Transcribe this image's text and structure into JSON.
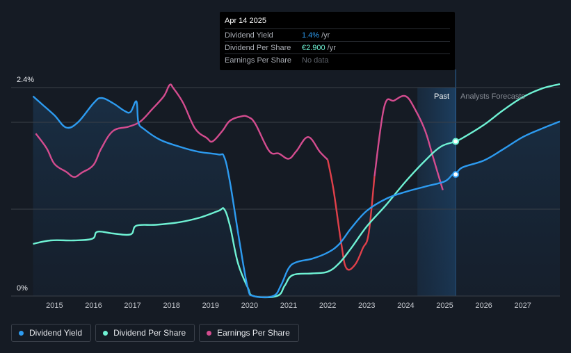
{
  "tooltip": {
    "date": "Apr 14 2025",
    "rows": [
      {
        "label": "Dividend Yield",
        "value": "1.4%",
        "unit": "/yr"
      },
      {
        "label": "Dividend Per Share",
        "value": "€2.900",
        "unit": "/yr"
      },
      {
        "label": "Earnings Per Share",
        "value": "No data",
        "unit": ""
      }
    ]
  },
  "legend": [
    {
      "label": "Dividend Yield",
      "color": "#2d9bf0"
    },
    {
      "label": "Dividend Per Share",
      "color": "#6ff2d4"
    },
    {
      "label": "Earnings Per Share",
      "color": "#d44c8f"
    }
  ],
  "chart_data": {
    "type": "line",
    "xlim": [
      2014.45,
      2027.95
    ],
    "ylim": [
      0,
      2.4
    ],
    "y_tick_labels": [
      {
        "value": 2.4,
        "label": "2.4%"
      },
      {
        "value": 0,
        "label": "0%"
      }
    ],
    "x_ticks": [
      2015,
      2016,
      2017,
      2018,
      2019,
      2020,
      2021,
      2022,
      2023,
      2024,
      2025,
      2026,
      2027
    ],
    "past_label": "Past",
    "forecast_label": "Analysts Forecasts",
    "forecast_band": [
      2024.3,
      2025.28
    ],
    "grid": true,
    "colors": {
      "yield": "#2d9bf0",
      "dps": "#6ff2d4",
      "eps_pos": "#d44c8f",
      "eps_neg": "#e0404a"
    },
    "series": [
      {
        "name": "Dividend Yield",
        "key": "yield",
        "points": [
          [
            2014.45,
            2.3
          ],
          [
            2014.7,
            2.2
          ],
          [
            2015.0,
            2.08
          ],
          [
            2015.3,
            1.94
          ],
          [
            2015.6,
            2.0
          ],
          [
            2016.0,
            2.22
          ],
          [
            2016.2,
            2.28
          ],
          [
            2016.5,
            2.22
          ],
          [
            2016.8,
            2.13
          ],
          [
            2016.95,
            2.12
          ],
          [
            2017.1,
            2.24
          ],
          [
            2017.15,
            2.0
          ],
          [
            2017.3,
            1.92
          ],
          [
            2017.7,
            1.8
          ],
          [
            2018.2,
            1.72
          ],
          [
            2018.7,
            1.66
          ],
          [
            2019.2,
            1.63
          ],
          [
            2019.35,
            1.6
          ],
          [
            2019.5,
            1.3
          ],
          [
            2019.75,
            0.6
          ],
          [
            2019.95,
            0.1
          ],
          [
            2020.1,
            0.0
          ],
          [
            2020.6,
            0.0
          ],
          [
            2020.8,
            0.12
          ],
          [
            2021.0,
            0.32
          ],
          [
            2021.2,
            0.39
          ],
          [
            2021.6,
            0.43
          ],
          [
            2022.0,
            0.5
          ],
          [
            2022.3,
            0.6
          ],
          [
            2022.6,
            0.78
          ],
          [
            2023.0,
            0.98
          ],
          [
            2023.5,
            1.12
          ],
          [
            2024.0,
            1.2
          ],
          [
            2024.5,
            1.26
          ],
          [
            2025.0,
            1.32
          ],
          [
            2025.2,
            1.4
          ],
          [
            2025.28,
            1.4
          ],
          [
            2025.45,
            1.48
          ],
          [
            2026.0,
            1.56
          ],
          [
            2026.5,
            1.69
          ],
          [
            2027.0,
            1.83
          ],
          [
            2027.5,
            1.93
          ],
          [
            2027.95,
            2.01
          ]
        ],
        "marker": [
          2025.28,
          1.4
        ]
      },
      {
        "name": "Dividend Per Share",
        "key": "dps",
        "points": [
          [
            2014.45,
            0.6
          ],
          [
            2014.9,
            0.64
          ],
          [
            2015.5,
            0.64
          ],
          [
            2015.97,
            0.66
          ],
          [
            2016.1,
            0.74
          ],
          [
            2016.5,
            0.72
          ],
          [
            2016.95,
            0.71
          ],
          [
            2017.1,
            0.81
          ],
          [
            2017.6,
            0.82
          ],
          [
            2018.2,
            0.85
          ],
          [
            2018.7,
            0.9
          ],
          [
            2019.2,
            0.98
          ],
          [
            2019.35,
            1.0
          ],
          [
            2019.5,
            0.8
          ],
          [
            2019.7,
            0.38
          ],
          [
            2019.95,
            0.1
          ],
          [
            2020.1,
            0.0
          ],
          [
            2020.7,
            0.0
          ],
          [
            2020.9,
            0.12
          ],
          [
            2021.1,
            0.24
          ],
          [
            2021.6,
            0.26
          ],
          [
            2022.0,
            0.28
          ],
          [
            2022.3,
            0.38
          ],
          [
            2022.6,
            0.55
          ],
          [
            2023.0,
            0.8
          ],
          [
            2023.5,
            1.05
          ],
          [
            2024.0,
            1.32
          ],
          [
            2024.5,
            1.56
          ],
          [
            2024.9,
            1.72
          ],
          [
            2025.28,
            1.78
          ],
          [
            2025.5,
            1.83
          ],
          [
            2026.0,
            1.97
          ],
          [
            2026.5,
            2.14
          ],
          [
            2027.0,
            2.29
          ],
          [
            2027.5,
            2.39
          ],
          [
            2027.95,
            2.44
          ]
        ],
        "marker": [
          2025.28,
          1.78
        ]
      },
      {
        "name": "Earnings Per Share",
        "key": "eps",
        "points": [
          [
            2014.52,
            1.87
          ],
          [
            2014.8,
            1.7
          ],
          [
            2015.0,
            1.52
          ],
          [
            2015.3,
            1.43
          ],
          [
            2015.5,
            1.37
          ],
          [
            2015.7,
            1.42
          ],
          [
            2016.0,
            1.51
          ],
          [
            2016.2,
            1.7
          ],
          [
            2016.5,
            1.9
          ],
          [
            2016.9,
            1.95
          ],
          [
            2017.2,
            2.01
          ],
          [
            2017.5,
            2.15
          ],
          [
            2017.8,
            2.3
          ],
          [
            2017.95,
            2.43
          ],
          [
            2018.05,
            2.39
          ],
          [
            2018.3,
            2.22
          ],
          [
            2018.6,
            1.93
          ],
          [
            2018.9,
            1.82
          ],
          [
            2019.05,
            1.78
          ],
          [
            2019.3,
            1.9
          ],
          [
            2019.5,
            2.02
          ],
          [
            2019.8,
            2.07
          ],
          [
            2019.97,
            2.06
          ],
          [
            2020.15,
            1.98
          ],
          [
            2020.5,
            1.67
          ],
          [
            2020.75,
            1.64
          ],
          [
            2021.0,
            1.58
          ],
          [
            2021.2,
            1.67
          ],
          [
            2021.5,
            1.83
          ],
          [
            2021.8,
            1.66
          ],
          [
            2022.0,
            1.57
          ],
          [
            2022.15,
            1.22
          ],
          [
            2022.35,
            0.6
          ],
          [
            2022.48,
            0.32
          ],
          [
            2022.7,
            0.36
          ],
          [
            2022.9,
            0.55
          ],
          [
            2023.05,
            0.72
          ],
          [
            2023.2,
            1.38
          ],
          [
            2023.45,
            2.18
          ],
          [
            2023.7,
            2.25
          ],
          [
            2024.0,
            2.3
          ],
          [
            2024.25,
            2.14
          ],
          [
            2024.5,
            1.9
          ],
          [
            2024.7,
            1.6
          ],
          [
            2024.95,
            1.22
          ]
        ]
      }
    ]
  }
}
